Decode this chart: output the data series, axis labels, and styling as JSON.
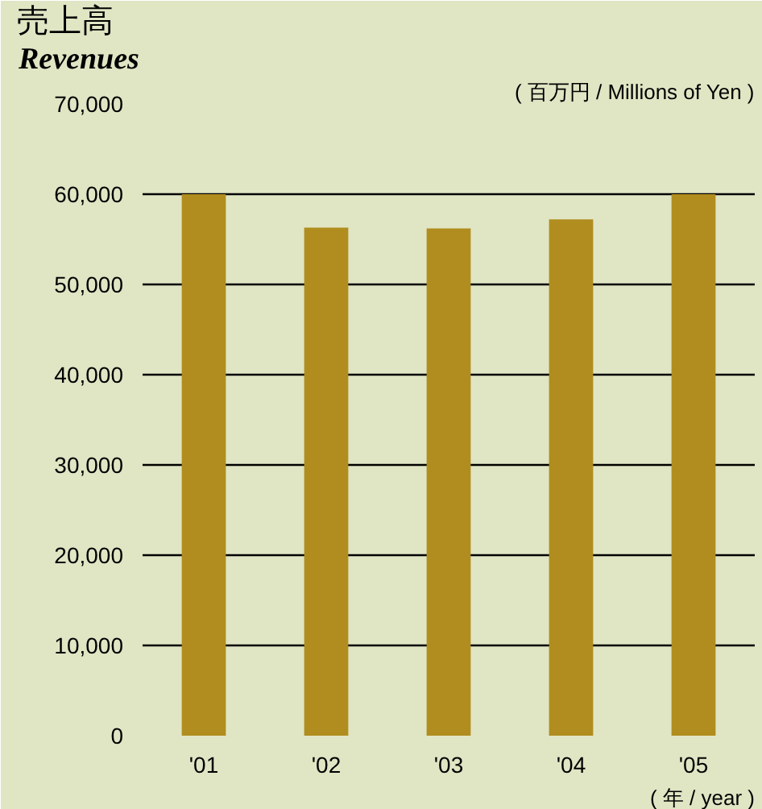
{
  "chart_data": {
    "type": "bar",
    "title": "売上高",
    "subtitle": "Revenues",
    "ylabel": "( 百万円 / Millions of Yen )",
    "xlabel": "( 年 / year )",
    "categories": [
      "'01",
      "'02",
      "'03",
      "'04",
      "'05"
    ],
    "values": [
      60000,
      56300,
      56200,
      57200,
      60000
    ],
    "color": "#b08d1e",
    "ylim": [
      0,
      70000
    ],
    "yticks": [
      {
        "value": 0,
        "label": "0"
      },
      {
        "value": 10000,
        "label": "10,000"
      },
      {
        "value": 20000,
        "label": "20,000"
      },
      {
        "value": 30000,
        "label": "30,000"
      },
      {
        "value": 40000,
        "label": "40,000"
      },
      {
        "value": 50000,
        "label": "50,000"
      },
      {
        "value": 60000,
        "label": "60,000"
      },
      {
        "value": 70000,
        "label": "70,000"
      }
    ],
    "grid": "y"
  }
}
